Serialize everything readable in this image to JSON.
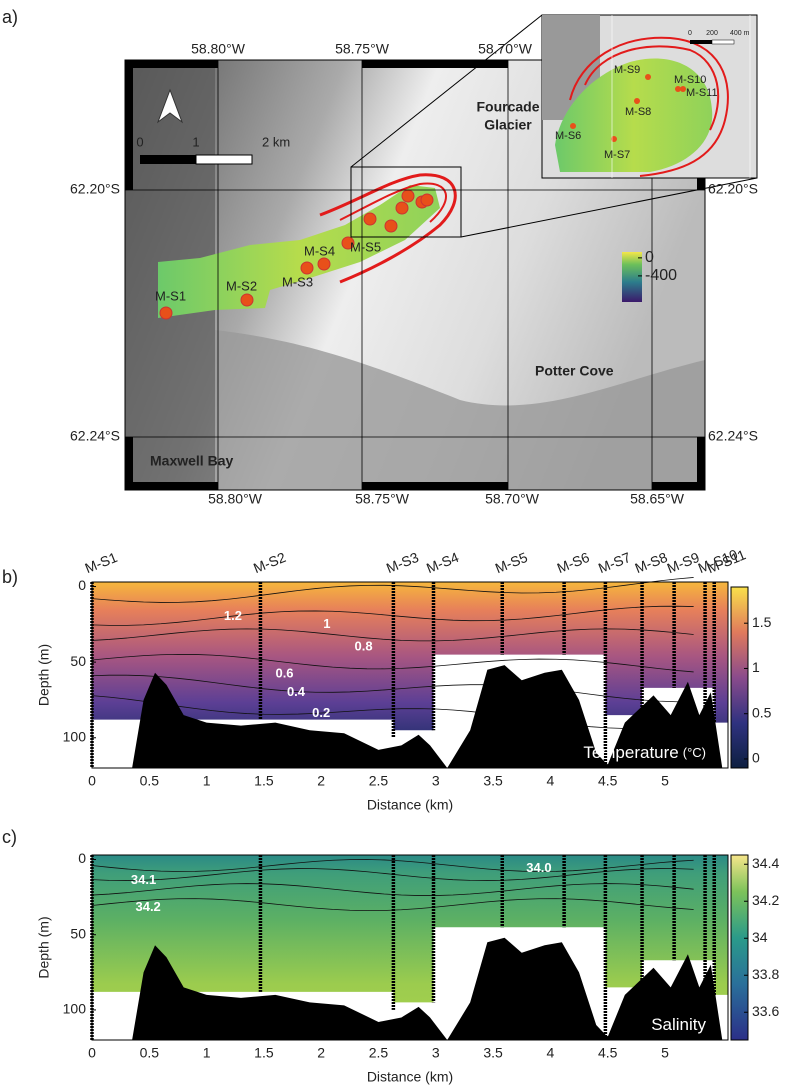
{
  "panel_labels": [
    "a)",
    "b)",
    "c)"
  ],
  "map": {
    "lon_labels_top": [
      "58.80°W",
      "58.75°W",
      "58.70°W"
    ],
    "lon_labels_bottom": [
      "58.80°W",
      "58.75°W",
      "58.70°W",
      "58.65°W"
    ],
    "lat_labels_left": [
      "62.20°S",
      "62.24°S"
    ],
    "lat_labels_right": [
      "62.20°S",
      "62.24°S"
    ],
    "scale_labels": [
      "0",
      "1",
      "2 km"
    ],
    "glacier_label": [
      "Fourcade",
      "Glacier"
    ],
    "place_labels": [
      "Potter Cove",
      "Maxwell Bay"
    ],
    "station_labels": [
      "M-S1",
      "M-S2",
      "M-S3",
      "M-S4",
      "M-S5"
    ],
    "colorbar": {
      "lim": [
        -480,
        130
      ],
      "ticks": [
        0,
        -400
      ]
    },
    "inset": {
      "scale_labels": [
        "0",
        "200",
        "400 m"
      ],
      "station_labels": [
        "M-S9",
        "M-S10",
        "M-S11",
        "M-S8",
        "M-S6",
        "M-S7"
      ]
    }
  },
  "sections": [
    {
      "stations": {
        "names": [
          "M-S1",
          "M-S2",
          "M-S3",
          "M-S4",
          "M-S5",
          "M-S6",
          "M-S7",
          "M-S8",
          "M-S9",
          "M-S10",
          "M-S11"
        ],
        "x": [
          0,
          1.47,
          2.63,
          2.98,
          3.58,
          4.12,
          4.48,
          4.8,
          5.08,
          5.35,
          5.43
        ]
      },
      "xlabel": "Distance (km)",
      "ylabel": "Depth (m)",
      "xlim": [
        0,
        5.55
      ],
      "xticks": [
        0,
        0.5,
        1,
        1.5,
        2,
        2.5,
        3,
        3.5,
        4,
        4.5,
        5
      ],
      "ylim": [
        -3,
        120
      ],
      "yticks": [
        0,
        50,
        100
      ],
      "colorbar": {
        "lim": [
          -0.1,
          1.9
        ],
        "ticks": [
          0,
          0.5,
          1,
          1.5
        ]
      },
      "contour_labels": [
        "1.2",
        "1",
        "0.8",
        "0.6",
        "0.4",
        "0.2"
      ],
      "caption": "Temperature",
      "caption_unit": "(°C)"
    },
    {
      "stations": {
        "x": [
          0,
          1.47,
          2.63,
          2.98,
          3.58,
          4.12,
          4.48,
          4.8,
          5.08,
          5.35,
          5.43
        ]
      },
      "xlabel": "Distance (km)",
      "ylabel": "Depth (m)",
      "xlim": [
        0,
        5.55
      ],
      "xticks": [
        0,
        0.5,
        1,
        1.5,
        2,
        2.5,
        3,
        3.5,
        4,
        4.5,
        5
      ],
      "ylim": [
        -3,
        120
      ],
      "yticks": [
        0,
        50,
        100
      ],
      "colorbar": {
        "lim": [
          33.45,
          34.45
        ],
        "ticks": [
          33.6,
          33.8,
          34,
          34.2,
          34.4
        ]
      },
      "contour_labels": [
        "34.1",
        "34.2",
        "34.0"
      ],
      "caption": "Salinity"
    }
  ]
}
